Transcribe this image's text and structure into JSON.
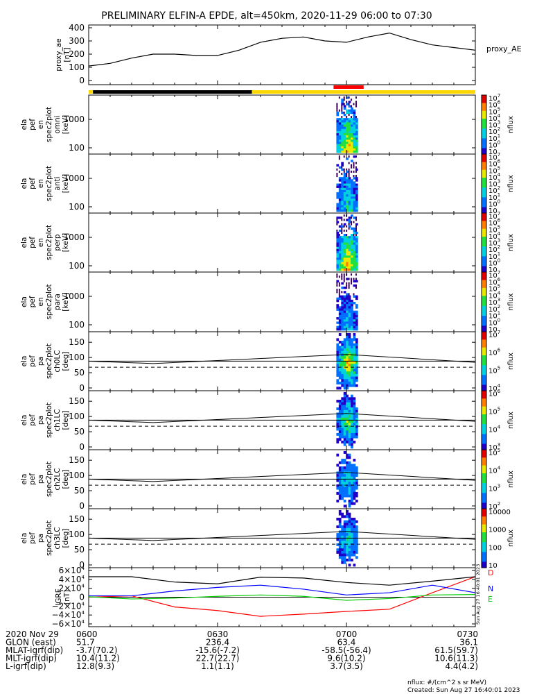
{
  "title": "PRELIMINARY ELFIN-A EPDE, alt=450km, 2020-11-29 06:00 to 07:30",
  "colors": {
    "ae_line": "#000000",
    "sunlight_bar_day": "#ffd700",
    "sunlight_bar_night": "#000000",
    "science_zone_bar": "#ff0000",
    "igrf_D": "#ff0000",
    "igrf_N": "#0000ff",
    "igrf_E": "#00cc00",
    "igrf_total": "#000000"
  },
  "panels": [
    {
      "ytitle": [
        "proxy_ae",
        "[nT]"
      ],
      "right_label": "proxy_AE",
      "yticks": [
        "400",
        "300",
        "200",
        "100",
        "0"
      ]
    },
    {
      "ytitle": [
        "ela",
        "pef",
        "en",
        "spec2plot",
        "omni",
        "[keV]"
      ],
      "yticks": [
        "1000",
        "100"
      ],
      "cb_ticks": [
        "10",
        "10",
        "10",
        "10",
        "10",
        "10",
        "10",
        "10",
        "10"
      ],
      "cb_exps": [
        "7",
        "6",
        "5",
        "4",
        "3",
        "2",
        "1",
        "0",
        ""
      ],
      "cb_label": "nflux"
    },
    {
      "ytitle": [
        "ela",
        "pef",
        "en",
        "spec2plot",
        "anti",
        "[keV]"
      ],
      "yticks": [
        "1000",
        "100"
      ],
      "cb_ticks": [
        "10",
        "10",
        "10",
        "10",
        "10",
        "10",
        "10",
        "10",
        "10"
      ],
      "cb_exps": [
        "7",
        "6",
        "5",
        "4",
        "3",
        "2",
        "1",
        "0",
        ""
      ],
      "cb_label": "nflux"
    },
    {
      "ytitle": [
        "ela",
        "pef",
        "en",
        "spec2plot",
        "perp",
        "[keV]"
      ],
      "yticks": [
        "1000",
        "100"
      ],
      "cb_ticks": [
        "10",
        "10",
        "10",
        "10",
        "10",
        "10",
        "10",
        "10",
        "10"
      ],
      "cb_exps": [
        "7",
        "6",
        "5",
        "4",
        "3",
        "2",
        "1",
        "0",
        ""
      ],
      "cb_label": "nflux"
    },
    {
      "ytitle": [
        "ela",
        "pef",
        "en",
        "spec2plot",
        "para",
        "[keV]"
      ],
      "yticks": [
        "1000",
        "100"
      ],
      "cb_ticks": [
        "10",
        "10",
        "10",
        "10",
        "10",
        "10",
        "10",
        "10",
        "10"
      ],
      "cb_exps": [
        "7",
        "6",
        "5",
        "4",
        "3",
        "2",
        "1",
        "0",
        ""
      ],
      "cb_label": "nflux"
    },
    {
      "ytitle": [
        "ela",
        "pef",
        "pa",
        "spec2plot",
        "ch0LC",
        "[deg]"
      ],
      "yticks": [
        "150",
        "100",
        "50",
        "0"
      ],
      "cb_ticks": [
        "10",
        "10",
        "10",
        "10"
      ],
      "cb_exps": [
        "7",
        "6",
        "5",
        "4"
      ],
      "cb_label": "nflux"
    },
    {
      "ytitle": [
        "ela",
        "pef",
        "pa",
        "spec2plot",
        "ch1LC",
        "[deg]"
      ],
      "yticks": [
        "150",
        "100",
        "50",
        "0"
      ],
      "cb_ticks": [
        "10",
        "10",
        "10",
        "10"
      ],
      "cb_exps": [
        "6",
        "5",
        "4",
        "3"
      ],
      "cb_label": "nflux"
    },
    {
      "ytitle": [
        "ela",
        "pef",
        "pa",
        "spec2plot",
        "ch2LC",
        "[deg]"
      ],
      "yticks": [
        "150",
        "100",
        "50",
        "0"
      ],
      "cb_ticks": [
        "10",
        "10",
        "10",
        "10"
      ],
      "cb_exps": [
        "5",
        "4",
        "3",
        "2"
      ],
      "cb_label": "nflux"
    },
    {
      "ytitle": [
        "ela",
        "pef",
        "pa",
        "spec2plot",
        "ch3LC",
        "[deg]"
      ],
      "yticks": [
        "150",
        "100",
        "50",
        "0"
      ],
      "cb_ticks": [
        "10000",
        "1000",
        "100",
        "10"
      ],
      "cb_exps": [
        "",
        "",
        "",
        ""
      ],
      "cb_label": "nflux"
    },
    {
      "ytitle": [
        "IGRF",
        "[nT]"
      ],
      "yticks": [
        "6×10",
        "4×10",
        "2×10",
        "0",
        "−2×10",
        "−4×10",
        "−6×10"
      ],
      "yexps": [
        "4",
        "4",
        "4",
        "",
        "4",
        "4",
        "4"
      ],
      "legend": [
        "D",
        "N",
        "E"
      ]
    }
  ],
  "xaxis": {
    "ticks": [
      "0600",
      "0630",
      "0700",
      "0730"
    ],
    "rows": [
      {
        "label": "2020 Nov 29",
        "values": [
          "0600",
          "0630",
          "0700",
          "0730"
        ]
      },
      {
        "label": "GLON (east)",
        "values": [
          "51.7",
          "236.4",
          "63.4",
          "36.1"
        ]
      },
      {
        "label": "MLAT-igrf(dip)",
        "values": [
          "-3.7(70.2)",
          "-15.6(-7.2)",
          "-58.5(-56.4)",
          "61.5(59.7)"
        ]
      },
      {
        "label": "MLT-igrf(dip)",
        "values": [
          "10.4(11.2)",
          "22.7(22.7)",
          "9.6(10.2)",
          "10.6(11.3)"
        ]
      },
      {
        "label": "L-igrf(dip)",
        "values": [
          "12.8(9.3)",
          "1.1(1.1)",
          "3.7(3.5)",
          "4.4(4.2)"
        ]
      }
    ]
  },
  "footer": {
    "units": "nflux: #/(cm^2 s sr MeV)",
    "created": "Created: Sun Aug 27 16:40:01 2023",
    "side_stamp": "Sun Aug 27 16:40:01 2023"
  },
  "chart_data": {
    "type": "line",
    "title": "PRELIMINARY ELFIN-A EPDE, alt=450km, 2020-11-29 06:00 to 07:30",
    "x_unit": "UT (hhmm)",
    "x_range": [
      "06:00",
      "07:30"
    ],
    "proxy_ae": {
      "ylabel": "proxy_ae [nT]",
      "ylim": [
        0,
        400
      ],
      "x": [
        "06:00",
        "06:05",
        "06:10",
        "06:15",
        "06:20",
        "06:25",
        "06:30",
        "06:35",
        "06:40",
        "06:45",
        "06:50",
        "06:55",
        "07:00",
        "07:05",
        "07:10",
        "07:15",
        "07:20",
        "07:25",
        "07:30"
      ],
      "values": [
        110,
        130,
        170,
        200,
        200,
        190,
        190,
        230,
        290,
        320,
        330,
        300,
        290,
        330,
        360,
        310,
        270,
        250,
        230
      ]
    },
    "sunlight_bar": [
      {
        "from": "06:00",
        "to": "06:01",
        "state": "day"
      },
      {
        "from": "06:01",
        "to": "06:38",
        "state": "eclipse"
      },
      {
        "from": "06:38",
        "to": "07:30",
        "state": "day"
      }
    ],
    "science_zone": {
      "from": "06:57",
      "to": "07:04"
    },
    "spectrogram_interval": {
      "from": "06:57",
      "to": "07:02"
    },
    "energy_panels": {
      "ylim_keV": [
        60,
        7000
      ],
      "yscale": "log",
      "names": [
        "omni",
        "anti",
        "perp",
        "para"
      ],
      "cb_range": [
        "10^0",
        "10^7"
      ]
    },
    "pitch_angle_panels": {
      "ylim_deg": [
        0,
        180
      ],
      "names": [
        "ch0LC",
        "ch1LC",
        "ch2LC",
        "ch3LC"
      ],
      "loss_cone_level_deg": 68,
      "anti_loss_cone_level_deg": 88
    },
    "igrf": {
      "ylabel": "IGRF [nT]",
      "ylim": [
        -60000,
        60000
      ],
      "series": [
        {
          "name": "D",
          "color": "#ff0000",
          "x": [
            "06:00",
            "06:10",
            "06:20",
            "06:30",
            "06:40",
            "06:50",
            "07:00",
            "07:10",
            "07:20",
            "07:30"
          ],
          "values": [
            0,
            3000,
            -22000,
            -30000,
            -43000,
            -38000,
            -32000,
            -27000,
            10000,
            46000
          ]
        },
        {
          "name": "N",
          "color": "#0000ff",
          "x": [
            "06:00",
            "06:10",
            "06:20",
            "06:30",
            "06:40",
            "06:50",
            "07:00",
            "07:10",
            "07:20",
            "07:30"
          ],
          "values": [
            3000,
            3000,
            14000,
            22000,
            27000,
            18000,
            5000,
            10000,
            27000,
            10000
          ]
        },
        {
          "name": "E",
          "color": "#00cc00",
          "x": [
            "06:00",
            "06:10",
            "06:20",
            "06:30",
            "06:40",
            "06:50",
            "07:00",
            "07:10",
            "07:20",
            "07:30"
          ],
          "values": [
            1000,
            -4000,
            -2000,
            2000,
            5000,
            2000,
            -7000,
            -3000,
            5000,
            6000
          ]
        },
        {
          "name": "",
          "color": "#000000",
          "x": [
            "06:00",
            "06:10",
            "06:20",
            "06:30",
            "06:40",
            "06:50",
            "07:00",
            "07:10",
            "07:20",
            "07:30"
          ],
          "values": [
            46000,
            46000,
            34000,
            30000,
            45000,
            43000,
            33000,
            27000,
            36000,
            46000
          ]
        }
      ]
    }
  }
}
